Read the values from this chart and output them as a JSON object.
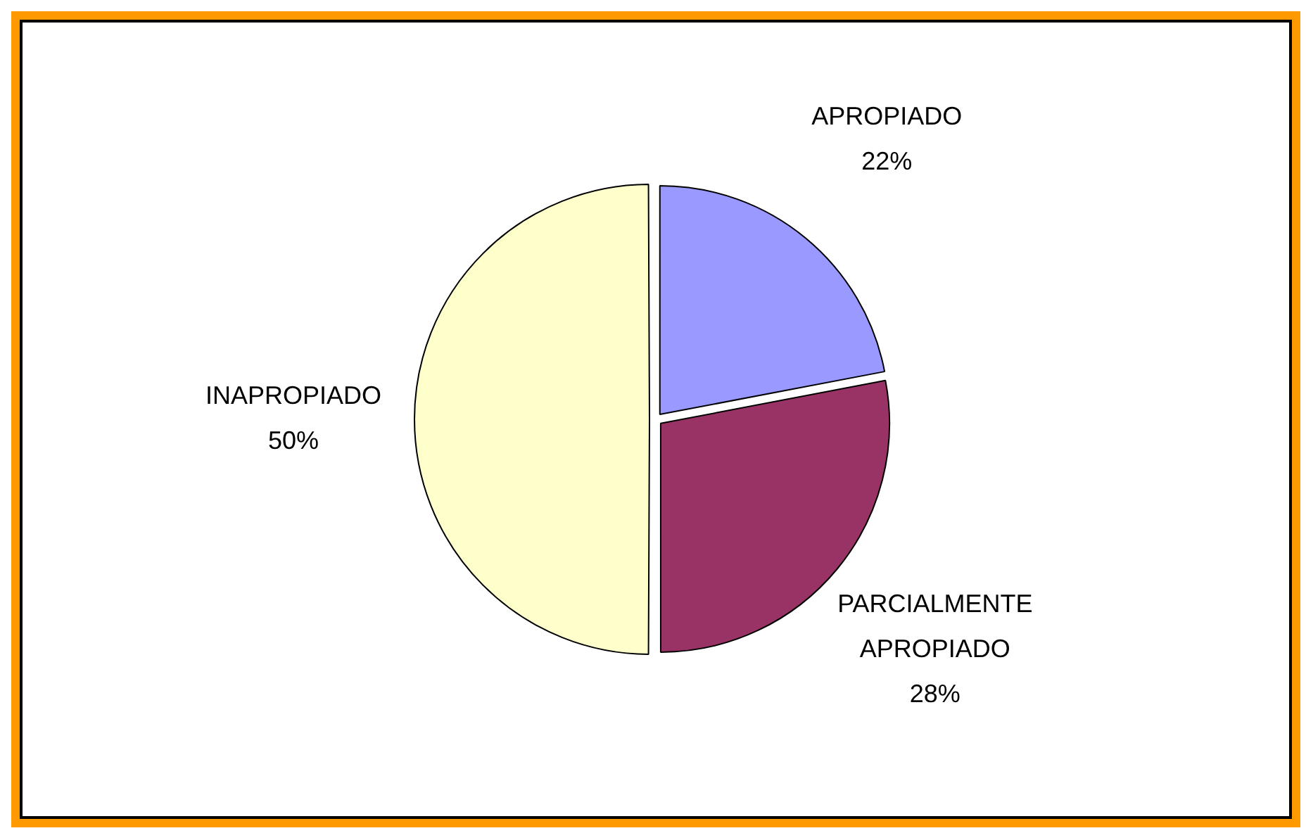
{
  "chart_data": {
    "type": "pie",
    "categories": [
      "APROPIADO",
      "PARCIALMENTE APROPIADO",
      "INAPROPIADO"
    ],
    "values": [
      22,
      28,
      50
    ],
    "colors": [
      "#9999ff",
      "#993366",
      "#ffffcc"
    ],
    "value_labels": [
      "22%",
      "28%",
      "50%"
    ],
    "legend": false
  }
}
